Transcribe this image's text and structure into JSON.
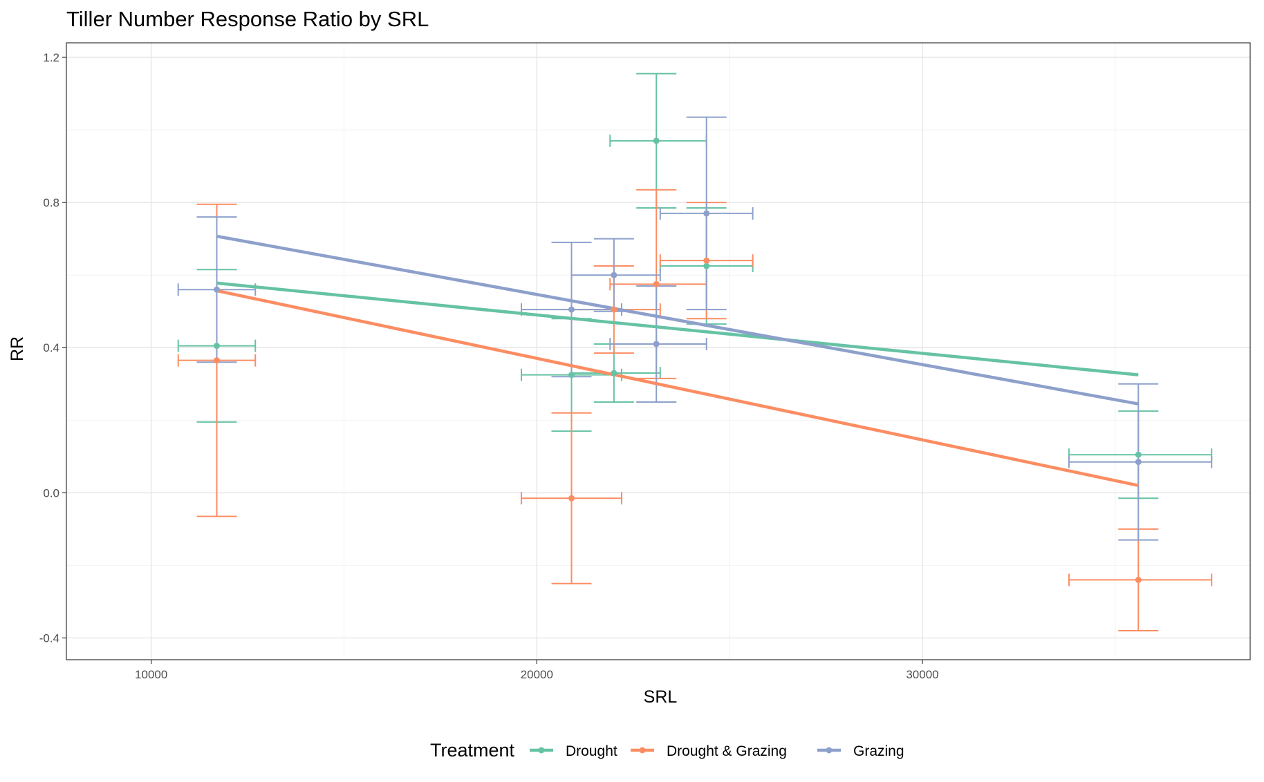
{
  "chart_data": {
    "type": "scatter",
    "title": "Tiller Number Response Ratio by SRL",
    "xlabel": "SRL",
    "ylabel": "RR",
    "xlim": [
      7800,
      38500
    ],
    "ylim": [
      -0.46,
      1.24
    ],
    "x_ticks": [
      10000,
      20000,
      30000
    ],
    "x_tick_labels": [
      "10000",
      "20000",
      "30000"
    ],
    "y_ticks": [
      -0.4,
      0.0,
      0.4,
      0.8,
      1.2
    ],
    "y_tick_labels": [
      "-0.4",
      "0.0",
      "0.4",
      "0.8",
      "1.2"
    ],
    "grid": true,
    "legend_title": "Treatment",
    "legend_position": "bottom",
    "series": [
      {
        "name": "Drought",
        "color": "#66c2a5",
        "points": [
          {
            "x": 11700,
            "y": 0.405,
            "ymin": 0.195,
            "ymax": 0.615,
            "xmin": 10700,
            "xmax": 12700
          },
          {
            "x": 20900,
            "y": 0.325,
            "ymin": 0.17,
            "ymax": 0.48,
            "xmin": 19600,
            "xmax": 22200
          },
          {
            "x": 22000,
            "y": 0.33,
            "ymin": 0.25,
            "ymax": 0.41,
            "xmin": 20900,
            "xmax": 23200
          },
          {
            "x": 23100,
            "y": 0.97,
            "ymin": 0.785,
            "ymax": 1.155,
            "xmin": 21900,
            "xmax": 24400
          },
          {
            "x": 24400,
            "y": 0.625,
            "ymin": 0.465,
            "ymax": 0.785,
            "xmin": 23200,
            "xmax": 25600
          },
          {
            "x": 35600,
            "y": 0.105,
            "ymin": -0.015,
            "ymax": 0.225,
            "xmin": 33800,
            "xmax": 37500
          }
        ],
        "trend": {
          "x": [
            11700,
            35600
          ],
          "y": [
            0.578,
            0.325
          ]
        }
      },
      {
        "name": "Drought & Grazing",
        "color": "#fc8d62",
        "points": [
          {
            "x": 11700,
            "y": 0.365,
            "ymin": -0.065,
            "ymax": 0.795,
            "xmin": 10700,
            "xmax": 12700
          },
          {
            "x": 20900,
            "y": -0.015,
            "ymin": -0.25,
            "ymax": 0.22,
            "xmin": 19600,
            "xmax": 22200
          },
          {
            "x": 22000,
            "y": 0.505,
            "ymin": 0.385,
            "ymax": 0.625,
            "xmin": 20900,
            "xmax": 23200
          },
          {
            "x": 23100,
            "y": 0.575,
            "ymin": 0.315,
            "ymax": 0.835,
            "xmin": 21900,
            "xmax": 24400
          },
          {
            "x": 24400,
            "y": 0.64,
            "ymin": 0.48,
            "ymax": 0.8,
            "xmin": 23200,
            "xmax": 25600
          },
          {
            "x": 35600,
            "y": -0.24,
            "ymin": -0.38,
            "ymax": -0.1,
            "xmin": 33800,
            "xmax": 37500
          }
        ],
        "trend": {
          "x": [
            11700,
            35600
          ],
          "y": [
            0.557,
            0.02
          ]
        }
      },
      {
        "name": "Grazing",
        "color": "#8da0cb",
        "points": [
          {
            "x": 11700,
            "y": 0.56,
            "ymin": 0.36,
            "ymax": 0.76,
            "xmin": 10700,
            "xmax": 12700
          },
          {
            "x": 20900,
            "y": 0.505,
            "ymin": 0.32,
            "ymax": 0.69,
            "xmin": 19600,
            "xmax": 22200
          },
          {
            "x": 22000,
            "y": 0.6,
            "ymin": 0.5,
            "ymax": 0.7,
            "xmin": 20900,
            "xmax": 23200
          },
          {
            "x": 23100,
            "y": 0.41,
            "ymin": 0.25,
            "ymax": 0.57,
            "xmin": 21900,
            "xmax": 24400
          },
          {
            "x": 24400,
            "y": 0.77,
            "ymin": 0.505,
            "ymax": 1.035,
            "xmin": 23200,
            "xmax": 25600
          },
          {
            "x": 35600,
            "y": 0.085,
            "ymin": -0.13,
            "ymax": 0.3,
            "xmin": 33800,
            "xmax": 37500
          }
        ],
        "trend": {
          "x": [
            11700,
            35600
          ],
          "y": [
            0.707,
            0.245
          ]
        }
      }
    ]
  }
}
